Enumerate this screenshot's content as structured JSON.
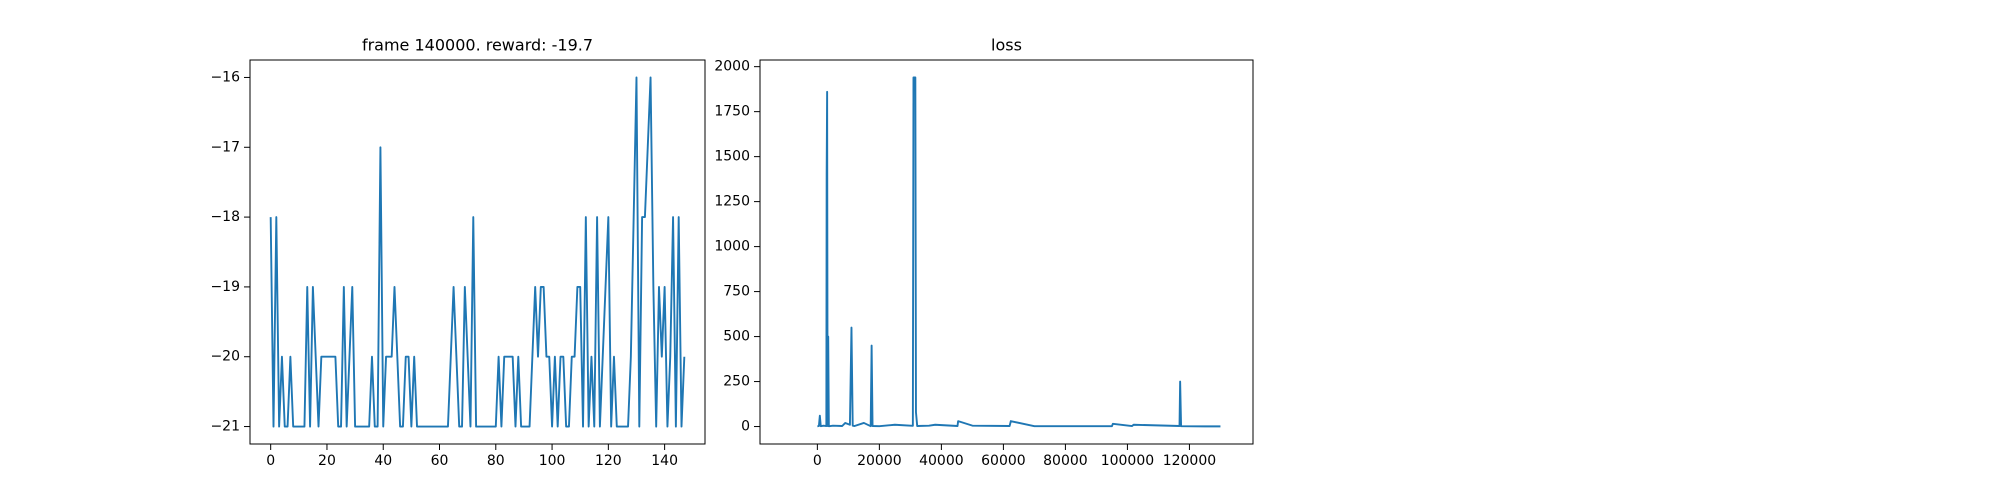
{
  "chart_data": [
    {
      "type": "line",
      "title": "frame 140000. reward: -19.7",
      "color": "#1f77b4",
      "xlim": [
        -7.35,
        154.35
      ],
      "ylim": [
        -21.25,
        -15.75
      ],
      "xticks": [
        0,
        20,
        40,
        60,
        80,
        100,
        120,
        140
      ],
      "yticks": [
        {
          "value": -21,
          "label": "−21"
        },
        {
          "value": -20,
          "label": "−20"
        },
        {
          "value": -19,
          "label": "−19"
        },
        {
          "value": -18,
          "label": "−18"
        },
        {
          "value": -17,
          "label": "−17"
        },
        {
          "value": -16,
          "label": "−16"
        }
      ],
      "values": [
        -18,
        -21,
        -18,
        -21,
        -20,
        -21,
        -21,
        -20,
        -21,
        -21,
        -21,
        -21,
        -21,
        -19,
        -21,
        -19,
        -20,
        -21,
        -20,
        -20,
        -20,
        -20,
        -20,
        -20,
        -21,
        -21,
        -19,
        -21,
        -20,
        -19,
        -21,
        -21,
        -21,
        -21,
        -21,
        -21,
        -20,
        -21,
        -21,
        -17,
        -21,
        -20,
        -20,
        -20,
        -19,
        -20,
        -21,
        -21,
        -20,
        -20,
        -21,
        -20,
        -21,
        -21,
        -21,
        -21,
        -21,
        -21,
        -21,
        -21,
        -21,
        -21,
        -21,
        -21,
        -20,
        -19,
        -20,
        -21,
        -21,
        -19,
        -20,
        -21,
        -18,
        -21,
        -21,
        -21,
        -21,
        -21,
        -21,
        -21,
        -21,
        -20,
        -21,
        -20,
        -20,
        -20,
        -20,
        -21,
        -20,
        -21,
        -21,
        -21,
        -21,
        -20,
        -19,
        -20,
        -19,
        -19,
        -20,
        -20,
        -21,
        -20,
        -21,
        -20,
        -20,
        -21,
        -21,
        -20,
        -20,
        -19,
        -19,
        -21,
        -18,
        -21,
        -20,
        -21,
        -18,
        -21,
        -20,
        -19,
        -18,
        -21,
        -20,
        -21,
        -21,
        -21,
        -21,
        -21,
        -20,
        -18,
        -16,
        -21,
        -18,
        -18,
        -17,
        -16,
        -19,
        -21,
        -19,
        -20,
        -19,
        -21,
        -20,
        -18,
        -21,
        -18,
        -21,
        -20
      ]
    },
    {
      "type": "line",
      "title": "loss",
      "color": "#1f77b4",
      "xlim": [
        -18500,
        140500
      ],
      "ylim": [
        -97,
        2037
      ],
      "xticks": [
        0,
        20000,
        40000,
        60000,
        80000,
        100000,
        120000
      ],
      "yticks": [
        0,
        250,
        500,
        750,
        1000,
        1250,
        1500,
        1750,
        2000
      ],
      "x": [
        0,
        500,
        800,
        1100,
        2000,
        2900,
        3000,
        3150,
        3300,
        3500,
        3700,
        3900,
        5000,
        8000,
        9000,
        10500,
        11000,
        11400,
        12000,
        15000,
        17200,
        17500,
        17800,
        20000,
        25000,
        30800,
        31000,
        31600,
        31800,
        32200,
        36000,
        38000,
        45200,
        45400,
        50000,
        62000,
        62400,
        70000,
        95000,
        95300,
        101500,
        102000,
        116800,
        117000,
        117300,
        125000,
        130000
      ],
      "values": [
        1,
        3,
        60,
        2,
        5,
        3,
        1400,
        1860,
        3,
        500,
        2,
        2,
        5,
        3,
        20,
        10,
        550,
        5,
        3,
        20,
        2,
        450,
        3,
        2,
        10,
        4,
        1940,
        1940,
        80,
        3,
        5,
        10,
        3,
        30,
        5,
        3,
        30,
        2,
        2,
        15,
        3,
        10,
        3,
        250,
        2,
        1,
        1
      ]
    }
  ]
}
